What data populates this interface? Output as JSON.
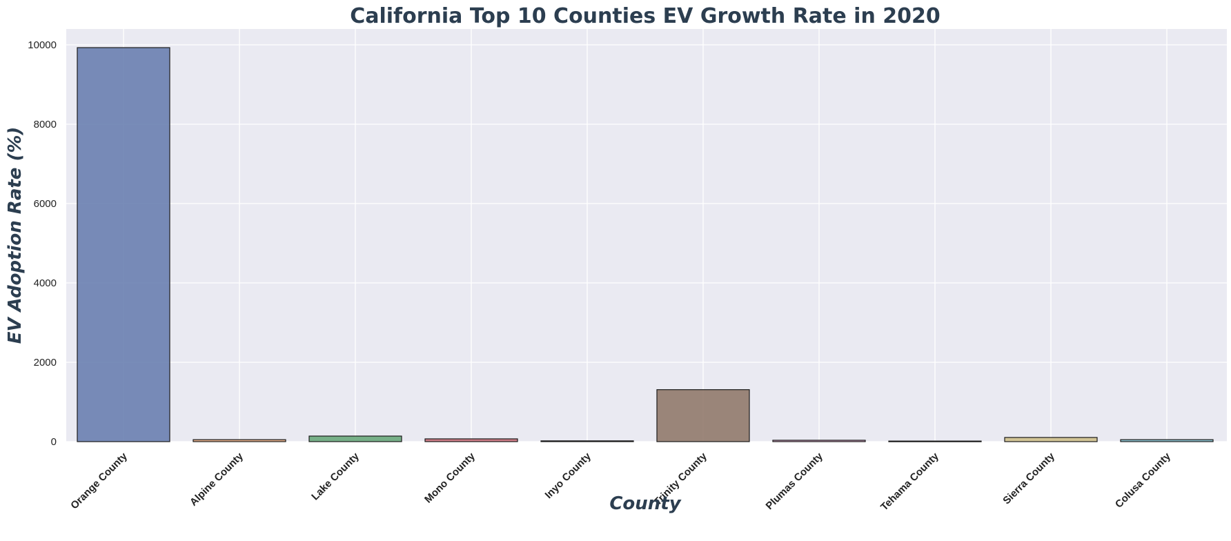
{
  "chart_data": {
    "type": "bar",
    "title": "California Top 10 Counties EV Growth Rate in 2020",
    "xlabel": "County",
    "ylabel": "EV Adoption Rate (%)",
    "categories": [
      "Orange County",
      "Alpine County",
      "Lake County",
      "Mono County",
      "Inyo County",
      "Trinity County",
      "Plumas County",
      "Tehama County",
      "Sierra County",
      "Colusa County"
    ],
    "values": [
      9930,
      50,
      140,
      70,
      20,
      1310,
      35,
      15,
      105,
      50
    ],
    "ylim": [
      0,
      10400
    ],
    "yticks": [
      0,
      2000,
      4000,
      6000,
      8000,
      10000
    ],
    "grid": true,
    "legend": "none",
    "colors": [
      "#6a80b0",
      "#e5a880",
      "#6aaa7c",
      "#c9707a",
      "#9b90c4",
      "#917a6c",
      "#d9a0c7",
      "#9a9a9a",
      "#cfc08c",
      "#82bccc"
    ],
    "plot_background": "#eaeaf2",
    "text_color": "#2c3e50"
  }
}
